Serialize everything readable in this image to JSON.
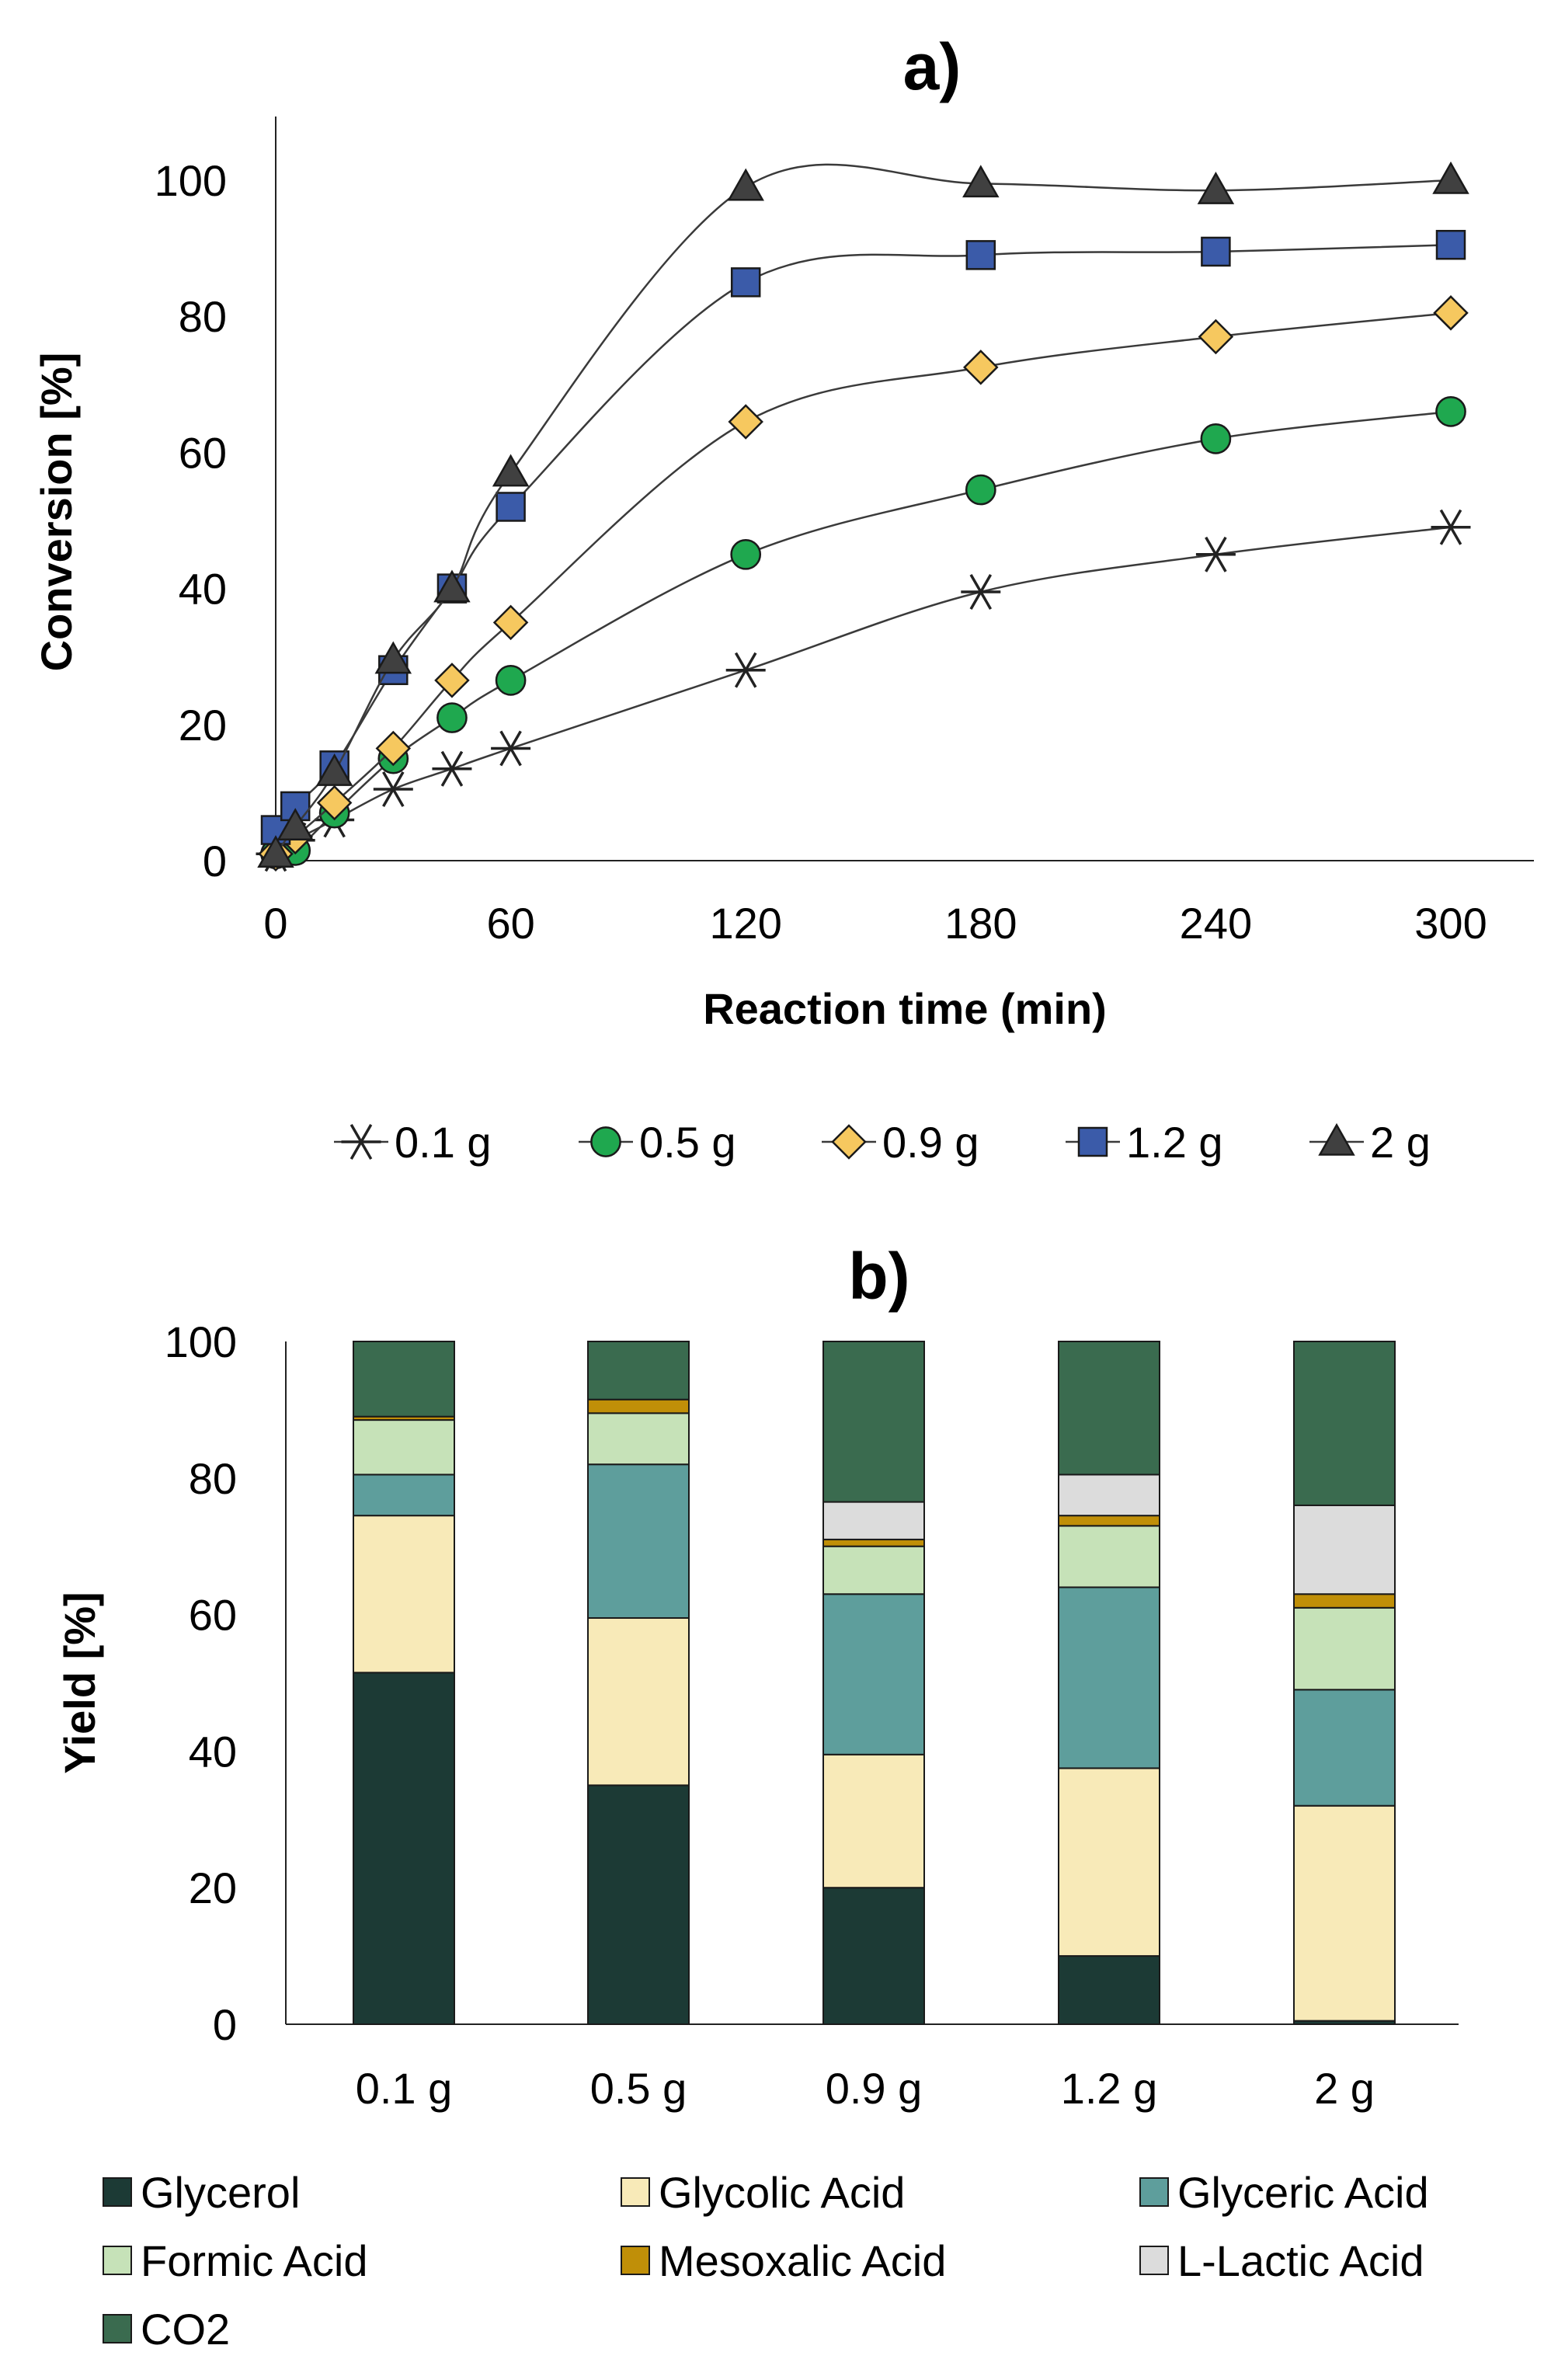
{
  "chart_data": [
    {
      "type": "line",
      "title": "a)",
      "xlabel": "Reaction time (min)",
      "ylabel": "Conversion [%]",
      "xlim": [
        0,
        310
      ],
      "ylim": [
        0,
        110
      ],
      "xticks": [
        0,
        60,
        120,
        180,
        240,
        300
      ],
      "yticks": [
        0,
        20,
        40,
        60,
        80,
        100
      ],
      "grid": false,
      "legend_position": "bottom",
      "series": [
        {
          "name": "0.1 g",
          "marker": "asterisk",
          "color": "#222222",
          "x": [
            0,
            5,
            15,
            30,
            45,
            60,
            120,
            180,
            240,
            300
          ],
          "y": [
            1,
            3,
            6,
            10.5,
            13.5,
            16.5,
            28,
            39.5,
            45,
            49
          ]
        },
        {
          "name": "0.5 g",
          "marker": "circle",
          "color": "#1fa84f",
          "x": [
            0,
            5,
            15,
            30,
            45,
            60,
            120,
            180,
            240,
            300
          ],
          "y": [
            1,
            1.5,
            7,
            15,
            21,
            26.5,
            45,
            54.5,
            62,
            66
          ]
        },
        {
          "name": "0.9 g",
          "marker": "diamond",
          "color": "#f6c85f",
          "x": [
            0,
            5,
            15,
            30,
            45,
            60,
            120,
            180,
            240,
            300
          ],
          "y": [
            1,
            3.5,
            8.5,
            16.5,
            26.5,
            35,
            64.5,
            72.5,
            77,
            80.5
          ]
        },
        {
          "name": "1.2 g",
          "marker": "square",
          "color": "#3b5ba9",
          "x": [
            0,
            5,
            15,
            30,
            45,
            60,
            120,
            180,
            240,
            300
          ],
          "y": [
            4.5,
            8,
            14,
            28,
            40,
            52,
            85,
            89,
            89.5,
            90.5
          ]
        },
        {
          "name": "2 g",
          "marker": "triangle",
          "color": "#404040",
          "x": [
            0,
            5,
            15,
            30,
            45,
            60,
            120,
            180,
            240,
            300
          ],
          "y": [
            1,
            5,
            13,
            29.5,
            40,
            57,
            99,
            99.5,
            98.5,
            100
          ]
        }
      ]
    },
    {
      "type": "bar",
      "stacked": true,
      "title": "b)",
      "xlabel": "",
      "ylabel": "Yield [%]",
      "ylim": [
        0,
        100
      ],
      "yticks": [
        0,
        20,
        40,
        60,
        80,
        100
      ],
      "grid": false,
      "legend_position": "bottom",
      "categories": [
        "0.1 g",
        "0.5 g",
        "0.9 g",
        "1.2 g",
        "2 g"
      ],
      "series": [
        {
          "name": "Glycerol",
          "color": "#1c3a35",
          "values": [
            51.5,
            35,
            20,
            10,
            0.5
          ]
        },
        {
          "name": "Glycolic Acid",
          "color": "#f8eab8",
          "values": [
            23,
            24.5,
            19.5,
            27.5,
            31.5
          ]
        },
        {
          "name": "Glyceric Acid",
          "color": "#5e9e9c",
          "values": [
            6,
            22.5,
            23.5,
            26.5,
            17
          ]
        },
        {
          "name": "Formic Acid",
          "color": "#c6e2b8",
          "values": [
            8,
            7.5,
            7,
            9,
            12
          ]
        },
        {
          "name": "Mesoxalic Acid",
          "color": "#c08f08",
          "values": [
            0.5,
            2,
            1,
            1.5,
            2
          ]
        },
        {
          "name": "L-Lactic Acid",
          "color": "#dcdcdc",
          "values": [
            0,
            0,
            5.5,
            6,
            13
          ]
        },
        {
          "name": "CO2",
          "color": "#3a6b4f",
          "values": [
            11,
            8.5,
            23.5,
            19.5,
            24
          ]
        }
      ]
    }
  ]
}
